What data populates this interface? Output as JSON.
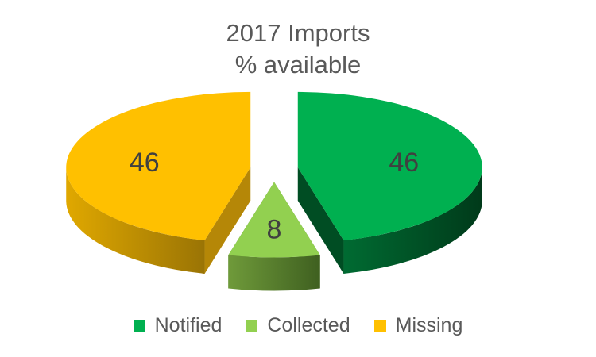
{
  "chart_data": {
    "type": "pie",
    "title": "2017 Imports",
    "subtitle": "% available",
    "slices": [
      {
        "name": "Notified",
        "value": 46,
        "label": "46",
        "color": "#00B050",
        "side_color": "#004D23"
      },
      {
        "name": "Collected",
        "value": 8,
        "label": "8",
        "color": "#92D050",
        "side_color": "#4E7A28"
      },
      {
        "name": "Missing",
        "value": 46,
        "label": "46",
        "color": "#FFC000",
        "side_color": "#B08406"
      }
    ],
    "legend": [
      "Notified",
      "Collected",
      "Missing"
    ],
    "legend_position": "bottom",
    "style": "3d-exploded"
  }
}
